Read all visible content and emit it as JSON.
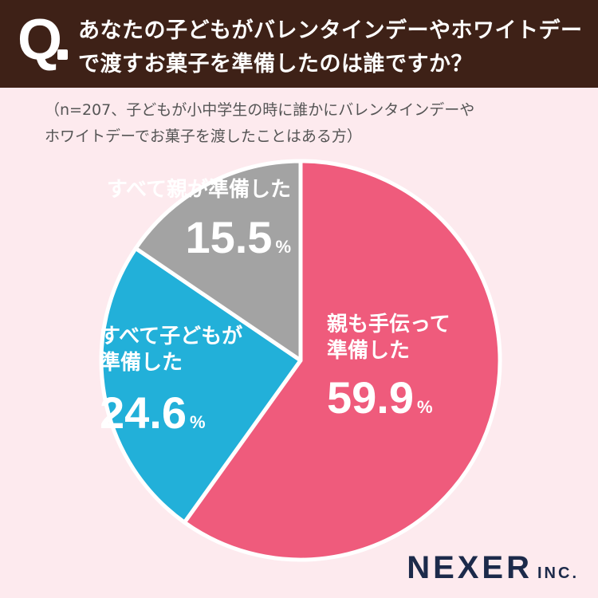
{
  "question": {
    "mark": "Q",
    "line1": "あなたの子どもがバレンタインデーやホワイトデー",
    "line2": "で渡すお菓子を準備したのは誰ですか？"
  },
  "note": {
    "line1": "（n=207、子どもが小中学生の時に誰かにバレンタインデーや",
    "line2": "ホワイトデーでお菓子を渡したことはある方）"
  },
  "logo": {
    "main": "NEXER",
    "sub": "INC."
  },
  "colors": {
    "background": "#fdeaee",
    "header": "#3e2117",
    "pink": "#ef5b7c",
    "blue": "#22b0d9",
    "gray": "#a3a3a3",
    "logo": "#1c2a4a"
  },
  "chart_data": {
    "type": "pie",
    "title": "",
    "slices": [
      {
        "label_lines": [
          "親も手伝って",
          "準備した"
        ],
        "value": 59.9,
        "value_text": "59.9",
        "unit": "%",
        "color": "#ef5b7c"
      },
      {
        "label_lines": [
          "すべて子どもが",
          "準備した"
        ],
        "value": 24.6,
        "value_text": "24.6",
        "unit": "%",
        "color": "#22b0d9"
      },
      {
        "label_lines": [
          "すべて親が準備した"
        ],
        "value": 15.5,
        "value_text": "15.5",
        "unit": "%",
        "color": "#a3a3a3"
      }
    ]
  }
}
